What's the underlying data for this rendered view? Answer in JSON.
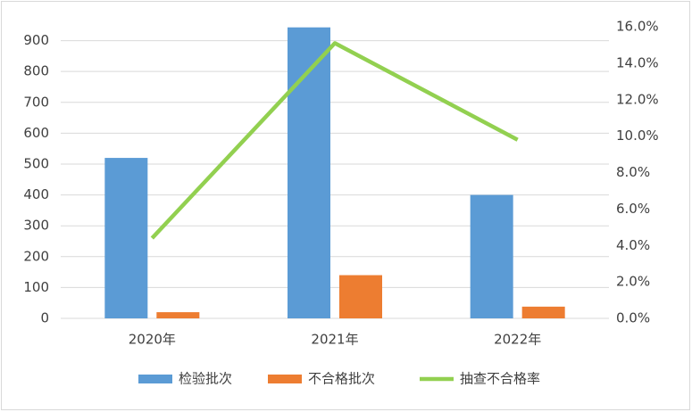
{
  "chart_data": {
    "type": "bar_line",
    "categories": [
      "2020年",
      "2021年",
      "2022年"
    ],
    "series": [
      {
        "name": "检验批次",
        "color": "#5b9bd5",
        "type": "bar",
        "values": [
          520,
          943,
          400
        ]
      },
      {
        "name": "不合格批次",
        "color": "#ed7d31",
        "type": "bar",
        "values": [
          20,
          140,
          38
        ]
      },
      {
        "name": "抽查不合格率",
        "color": "#92d050",
        "type": "line",
        "axis": "y2",
        "values": [
          4.4,
          15.1,
          9.8
        ]
      }
    ],
    "ylim": [
      0,
      945
    ],
    "yticks": [
      0,
      100,
      200,
      300,
      400,
      500,
      600,
      700,
      800,
      900
    ],
    "y2lim": [
      0,
      16
    ],
    "y2ticks": [
      {
        "value": 0,
        "label": "0.0%"
      },
      {
        "value": 2,
        "label": "2.0%"
      },
      {
        "value": 4,
        "label": "4.0%"
      },
      {
        "value": 6,
        "label": "6.0%"
      },
      {
        "value": 8,
        "label": "8.0%"
      },
      {
        "value": 10,
        "label": "10.0%"
      },
      {
        "value": 12,
        "label": "12.0%"
      },
      {
        "value": 14,
        "label": "14.0%"
      },
      {
        "value": 16,
        "label": "16.0%"
      }
    ],
    "grid": true,
    "legend": "bottom"
  }
}
